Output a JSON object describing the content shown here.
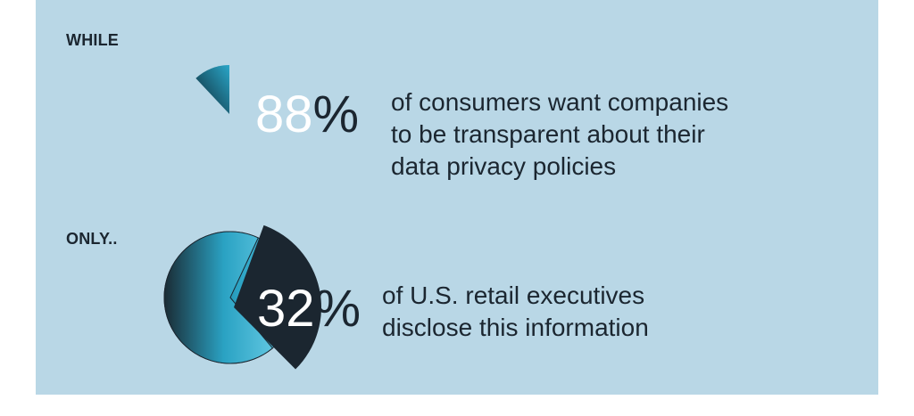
{
  "chart_data": [
    {
      "type": "pie",
      "label": "WHILE",
      "value_text": "88",
      "percent_symbol": "%",
      "values": [
        88,
        12
      ],
      "description_lines": [
        "of consumers want companies",
        "to be transparent about their",
        "data privacy policies"
      ]
    },
    {
      "type": "pie",
      "label": "ONLY..",
      "value_text": "32",
      "percent_symbol": "%",
      "values": [
        32,
        68
      ],
      "description_lines": [
        "of U.S. retail executives",
        "disclose this information"
      ]
    }
  ],
  "colors": {
    "background": "#b9d7e6",
    "dark_slice": "#1b2630",
    "light_slice_start": "#2ba3c4",
    "light_slice_end": "#0f2a36"
  }
}
